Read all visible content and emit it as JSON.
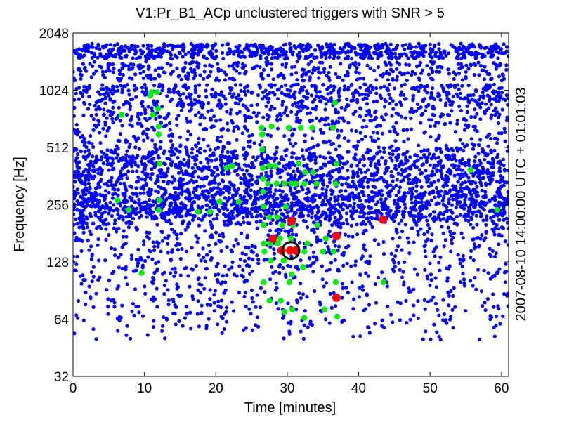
{
  "chart_data": {
    "type": "scatter",
    "title": "V1:Pr_B1_ACp unclustered triggers with SNR > 5",
    "xlabel": "Time [minutes]",
    "ylabel": "Frequency [Hz]",
    "right_label": "2007-08-10 14:00:00 UTC + 01:01:03",
    "xlim": [
      0,
      61
    ],
    "ylim": [
      32,
      2048
    ],
    "y_scale": "log2",
    "x_ticks": [
      "0",
      "10",
      "20",
      "30",
      "40",
      "50",
      "60"
    ],
    "x_tick_values": [
      0,
      10,
      20,
      30,
      40,
      50,
      60
    ],
    "y_ticks": [
      "32",
      "64",
      "128",
      "256",
      "512",
      "1024",
      "2048"
    ],
    "y_tick_values": [
      32,
      64,
      128,
      256,
      512,
      1024,
      2048
    ],
    "grid": false,
    "colors": {
      "low": "#0000ff",
      "mid": "#00ee00",
      "high": "#ff0000",
      "loudest_ring": "#000000"
    },
    "series": [
      {
        "color": "#00ee00",
        "points": [
          [
            6.2,
            270
          ],
          [
            6.8,
            760
          ],
          [
            7.8,
            240
          ],
          [
            9.6,
            112
          ],
          [
            10.8,
            960
          ],
          [
            11.0,
            1000
          ],
          [
            11.2,
            760
          ],
          [
            11.8,
            1000
          ],
          [
            11.9,
            820
          ],
          [
            12.0,
            660
          ],
          [
            12.0,
            600
          ],
          [
            12.1,
            420
          ],
          [
            12.1,
            270
          ],
          [
            12.0,
            240
          ],
          [
            17.5,
            235
          ],
          [
            19.2,
            235
          ],
          [
            20.5,
            265
          ],
          [
            21.5,
            400
          ],
          [
            22.3,
            410
          ],
          [
            23.2,
            265
          ],
          [
            26.4,
            650
          ],
          [
            26.5,
            600
          ],
          [
            26.5,
            500
          ],
          [
            26.6,
            400
          ],
          [
            26.6,
            350
          ],
          [
            26.6,
            300
          ],
          [
            26.7,
            250
          ],
          [
            26.7,
            200
          ],
          [
            26.7,
            160
          ],
          [
            26.8,
            145
          ],
          [
            26.7,
            100
          ],
          [
            27.5,
            410
          ],
          [
            27.3,
            330
          ],
          [
            27.5,
            220
          ],
          [
            27.6,
            160
          ],
          [
            27.7,
            130
          ],
          [
            27.5,
            80
          ],
          [
            27.8,
            660
          ],
          [
            28.3,
            410
          ],
          [
            28.5,
            330
          ],
          [
            28.6,
            220
          ],
          [
            28.7,
            160
          ],
          [
            29.6,
            330
          ],
          [
            29.8,
            250
          ],
          [
            29.3,
            200
          ],
          [
            29.0,
            170
          ],
          [
            29.2,
            145
          ],
          [
            29.5,
            130
          ],
          [
            29.1,
            80
          ],
          [
            29.6,
            70
          ],
          [
            30.2,
            650
          ],
          [
            30.6,
            330
          ],
          [
            30.8,
            200
          ],
          [
            30.5,
            170
          ],
          [
            30.6,
            110
          ],
          [
            30.7,
            72
          ],
          [
            30.3,
            100
          ],
          [
            31.2,
            330
          ],
          [
            31.6,
            420
          ],
          [
            31.9,
            650
          ],
          [
            32.4,
            330
          ],
          [
            32.5,
            380
          ],
          [
            32.8,
            160
          ],
          [
            32.4,
            145
          ],
          [
            32.2,
            120
          ],
          [
            32.4,
            65
          ],
          [
            33.5,
            650
          ],
          [
            33.6,
            380
          ],
          [
            34.1,
            330
          ],
          [
            34.2,
            200
          ],
          [
            35.4,
            170
          ],
          [
            35.0,
            145
          ],
          [
            35.2,
            72
          ],
          [
            36.7,
            880
          ],
          [
            36.4,
            650
          ],
          [
            36.9,
            420
          ],
          [
            36.8,
            330
          ],
          [
            36.5,
            145
          ],
          [
            36.8,
            100
          ],
          [
            37.0,
            66
          ],
          [
            43.5,
            100
          ],
          [
            55.7,
            390
          ],
          [
            59.4,
            240
          ]
        ]
      },
      {
        "color": "#ff0000",
        "points": [
          [
            28.0,
            170
          ],
          [
            29.2,
            147
          ],
          [
            30.6,
            210
          ],
          [
            30.4,
            147
          ],
          [
            31.2,
            147
          ],
          [
            36.9,
            175
          ],
          [
            36.9,
            83
          ],
          [
            43.4,
            214
          ]
        ]
      }
    ],
    "loudest": {
      "x": 30.5,
      "y": 147,
      "color": "#000000"
    }
  }
}
